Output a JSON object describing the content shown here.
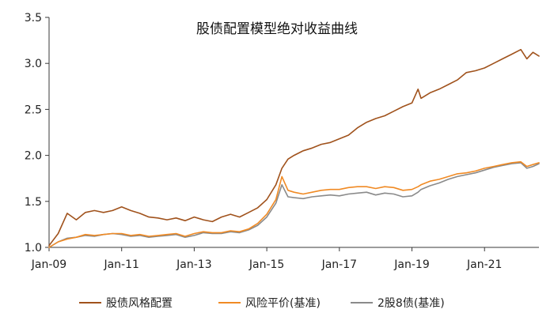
{
  "chart_data": {
    "type": "line",
    "title": "股债配置模型绝对收益曲线",
    "xlabel": "",
    "ylabel": "",
    "x_ticks": [
      "Jan-09",
      "Jan-11",
      "Jan-13",
      "Jan-15",
      "Jan-17",
      "Jan-19",
      "Jan-21"
    ],
    "y_ticks": [
      "1.0",
      "1.5",
      "2.0",
      "2.5",
      "3.0",
      "3.5"
    ],
    "ylim": [
      1.0,
      3.5
    ],
    "xlim": [
      "2009-01",
      "2022-07"
    ],
    "grid": false,
    "legend_position": "bottom",
    "x": [
      "2009-01",
      "2009-04",
      "2009-07",
      "2009-10",
      "2010-01",
      "2010-04",
      "2010-07",
      "2010-10",
      "2011-01",
      "2011-04",
      "2011-07",
      "2011-10",
      "2012-01",
      "2012-04",
      "2012-07",
      "2012-10",
      "2013-01",
      "2013-04",
      "2013-07",
      "2013-10",
      "2014-01",
      "2014-04",
      "2014-07",
      "2014-10",
      "2015-01",
      "2015-04",
      "2015-06",
      "2015-08",
      "2015-10",
      "2016-01",
      "2016-04",
      "2016-07",
      "2016-10",
      "2017-01",
      "2017-04",
      "2017-07",
      "2017-10",
      "2018-01",
      "2018-04",
      "2018-07",
      "2018-10",
      "2019-01",
      "2019-03",
      "2019-04",
      "2019-07",
      "2019-10",
      "2020-01",
      "2020-04",
      "2020-07",
      "2020-10",
      "2021-01",
      "2021-04",
      "2021-07",
      "2021-10",
      "2022-01",
      "2022-03",
      "2022-05",
      "2022-07"
    ],
    "series": [
      {
        "name": "股债风格配置",
        "color": "#A0521C",
        "values": [
          1.02,
          1.15,
          1.37,
          1.3,
          1.38,
          1.4,
          1.38,
          1.4,
          1.44,
          1.4,
          1.37,
          1.33,
          1.32,
          1.3,
          1.32,
          1.29,
          1.33,
          1.3,
          1.28,
          1.33,
          1.36,
          1.33,
          1.38,
          1.43,
          1.52,
          1.68,
          1.86,
          1.96,
          2.0,
          2.05,
          2.08,
          2.12,
          2.14,
          2.18,
          2.22,
          2.3,
          2.36,
          2.4,
          2.43,
          2.48,
          2.53,
          2.57,
          2.72,
          2.62,
          2.68,
          2.72,
          2.77,
          2.82,
          2.9,
          2.92,
          2.95,
          3.0,
          3.05,
          3.1,
          3.15,
          3.05,
          3.12,
          3.08
        ]
      },
      {
        "name": "风险平价(基准)",
        "color": "#F08A24",
        "values": [
          1.0,
          1.06,
          1.09,
          1.11,
          1.14,
          1.13,
          1.14,
          1.15,
          1.15,
          1.13,
          1.14,
          1.12,
          1.13,
          1.14,
          1.15,
          1.12,
          1.15,
          1.17,
          1.16,
          1.16,
          1.18,
          1.17,
          1.2,
          1.26,
          1.36,
          1.52,
          1.77,
          1.62,
          1.6,
          1.58,
          1.6,
          1.62,
          1.63,
          1.63,
          1.65,
          1.66,
          1.66,
          1.64,
          1.66,
          1.65,
          1.62,
          1.63,
          1.66,
          1.68,
          1.72,
          1.74,
          1.77,
          1.8,
          1.81,
          1.83,
          1.86,
          1.88,
          1.9,
          1.92,
          1.93,
          1.88,
          1.9,
          1.92
        ]
      },
      {
        "name": "2股8债(基准)",
        "color": "#8A8A8A",
        "values": [
          1.0,
          1.06,
          1.1,
          1.11,
          1.13,
          1.12,
          1.14,
          1.15,
          1.14,
          1.12,
          1.13,
          1.11,
          1.12,
          1.13,
          1.14,
          1.11,
          1.13,
          1.16,
          1.15,
          1.15,
          1.17,
          1.16,
          1.19,
          1.24,
          1.33,
          1.48,
          1.68,
          1.55,
          1.54,
          1.53,
          1.55,
          1.56,
          1.57,
          1.56,
          1.58,
          1.59,
          1.6,
          1.57,
          1.59,
          1.58,
          1.55,
          1.56,
          1.6,
          1.63,
          1.67,
          1.7,
          1.74,
          1.77,
          1.79,
          1.81,
          1.84,
          1.87,
          1.89,
          1.91,
          1.92,
          1.86,
          1.88,
          1.91
        ]
      }
    ]
  }
}
